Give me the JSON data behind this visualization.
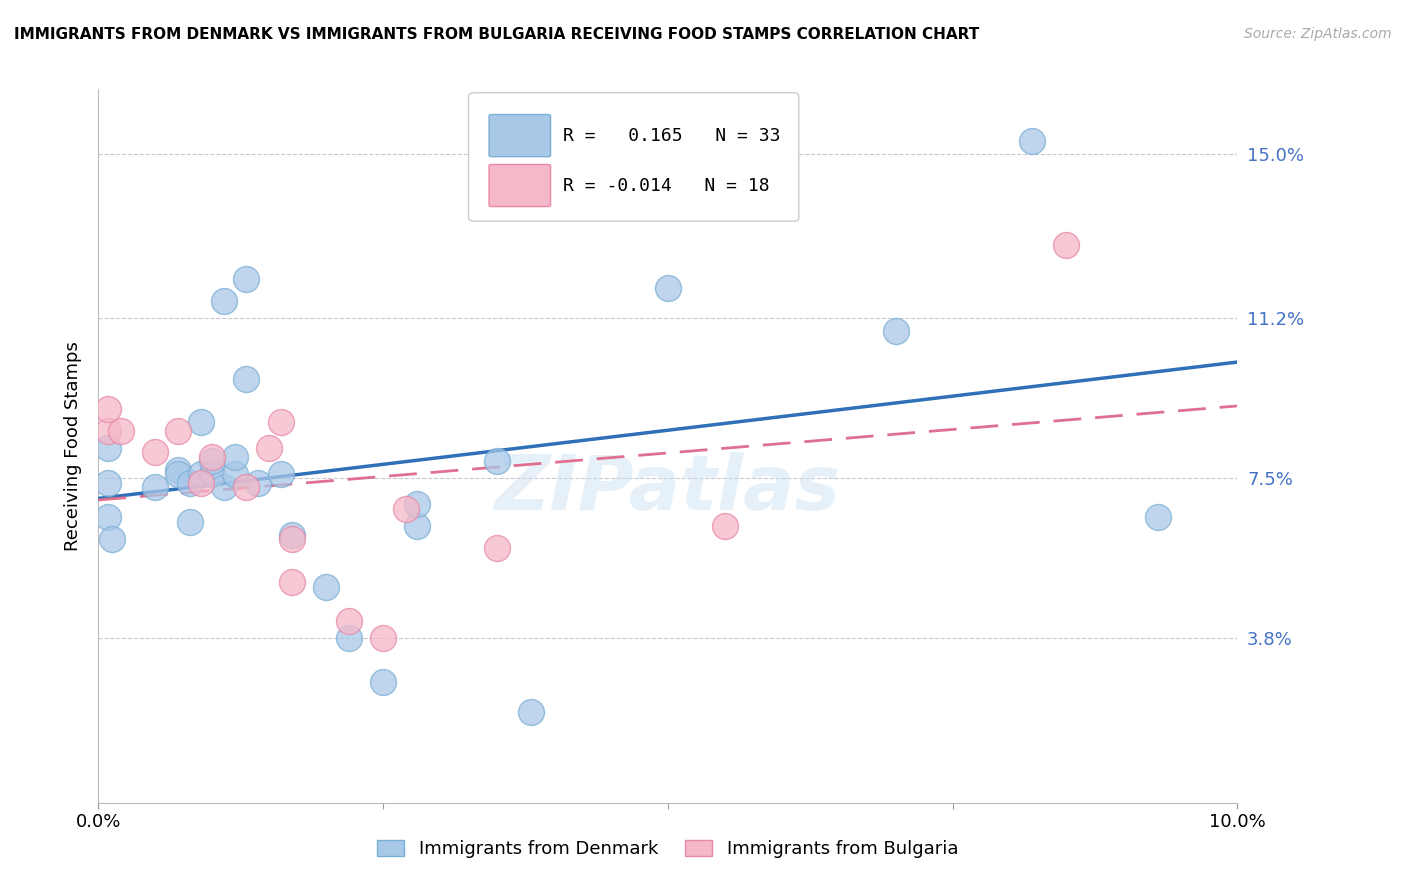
{
  "title": "IMMIGRANTS FROM DENMARK VS IMMIGRANTS FROM BULGARIA RECEIVING FOOD STAMPS CORRELATION CHART",
  "source": "Source: ZipAtlas.com",
  "ylabel": "Receiving Food Stamps",
  "xlim": [
    0.0,
    0.1
  ],
  "ylim": [
    0.0,
    0.165
  ],
  "yticks": [
    0.038,
    0.075,
    0.112,
    0.15
  ],
  "ytick_labels": [
    "3.8%",
    "7.5%",
    "11.2%",
    "15.0%"
  ],
  "xticks": [
    0.0,
    0.025,
    0.05,
    0.075,
    0.1
  ],
  "xtick_labels": [
    "0.0%",
    "",
    "",
    "",
    "10.0%"
  ],
  "denmark_color_fill": "#a8c8e8",
  "denmark_color_edge": "#7aafd4",
  "bulgaria_color_fill": "#f5b8c8",
  "bulgaria_color_edge": "#e888a8",
  "line_denmark_color": "#3070b8",
  "line_bulgaria_color": "#e07090",
  "R_denmark": 0.165,
  "N_denmark": 33,
  "R_bulgaria": -0.014,
  "N_bulgaria": 18,
  "watermark": "ZIPatlas",
  "denmark_x": [
    0.0008,
    0.0008,
    0.0008,
    0.0012,
    0.005,
    0.007,
    0.007,
    0.008,
    0.008,
    0.009,
    0.009,
    0.01,
    0.01,
    0.011,
    0.011,
    0.012,
    0.012,
    0.013,
    0.013,
    0.014,
    0.016,
    0.017,
    0.02,
    0.022,
    0.025,
    0.028,
    0.028,
    0.035,
    0.038,
    0.05,
    0.07,
    0.082,
    0.093
  ],
  "denmark_y": [
    0.082,
    0.074,
    0.066,
    0.061,
    0.073,
    0.077,
    0.076,
    0.074,
    0.065,
    0.076,
    0.088,
    0.076,
    0.079,
    0.073,
    0.116,
    0.076,
    0.08,
    0.121,
    0.098,
    0.074,
    0.076,
    0.062,
    0.05,
    0.038,
    0.028,
    0.064,
    0.069,
    0.079,
    0.021,
    0.119,
    0.109,
    0.153,
    0.066
  ],
  "bulgaria_x": [
    0.0008,
    0.0008,
    0.002,
    0.005,
    0.007,
    0.009,
    0.01,
    0.013,
    0.015,
    0.016,
    0.017,
    0.017,
    0.022,
    0.025,
    0.027,
    0.035,
    0.055,
    0.085
  ],
  "bulgaria_y": [
    0.086,
    0.091,
    0.086,
    0.081,
    0.086,
    0.074,
    0.08,
    0.073,
    0.082,
    0.088,
    0.061,
    0.051,
    0.042,
    0.038,
    0.068,
    0.059,
    0.064,
    0.129
  ]
}
